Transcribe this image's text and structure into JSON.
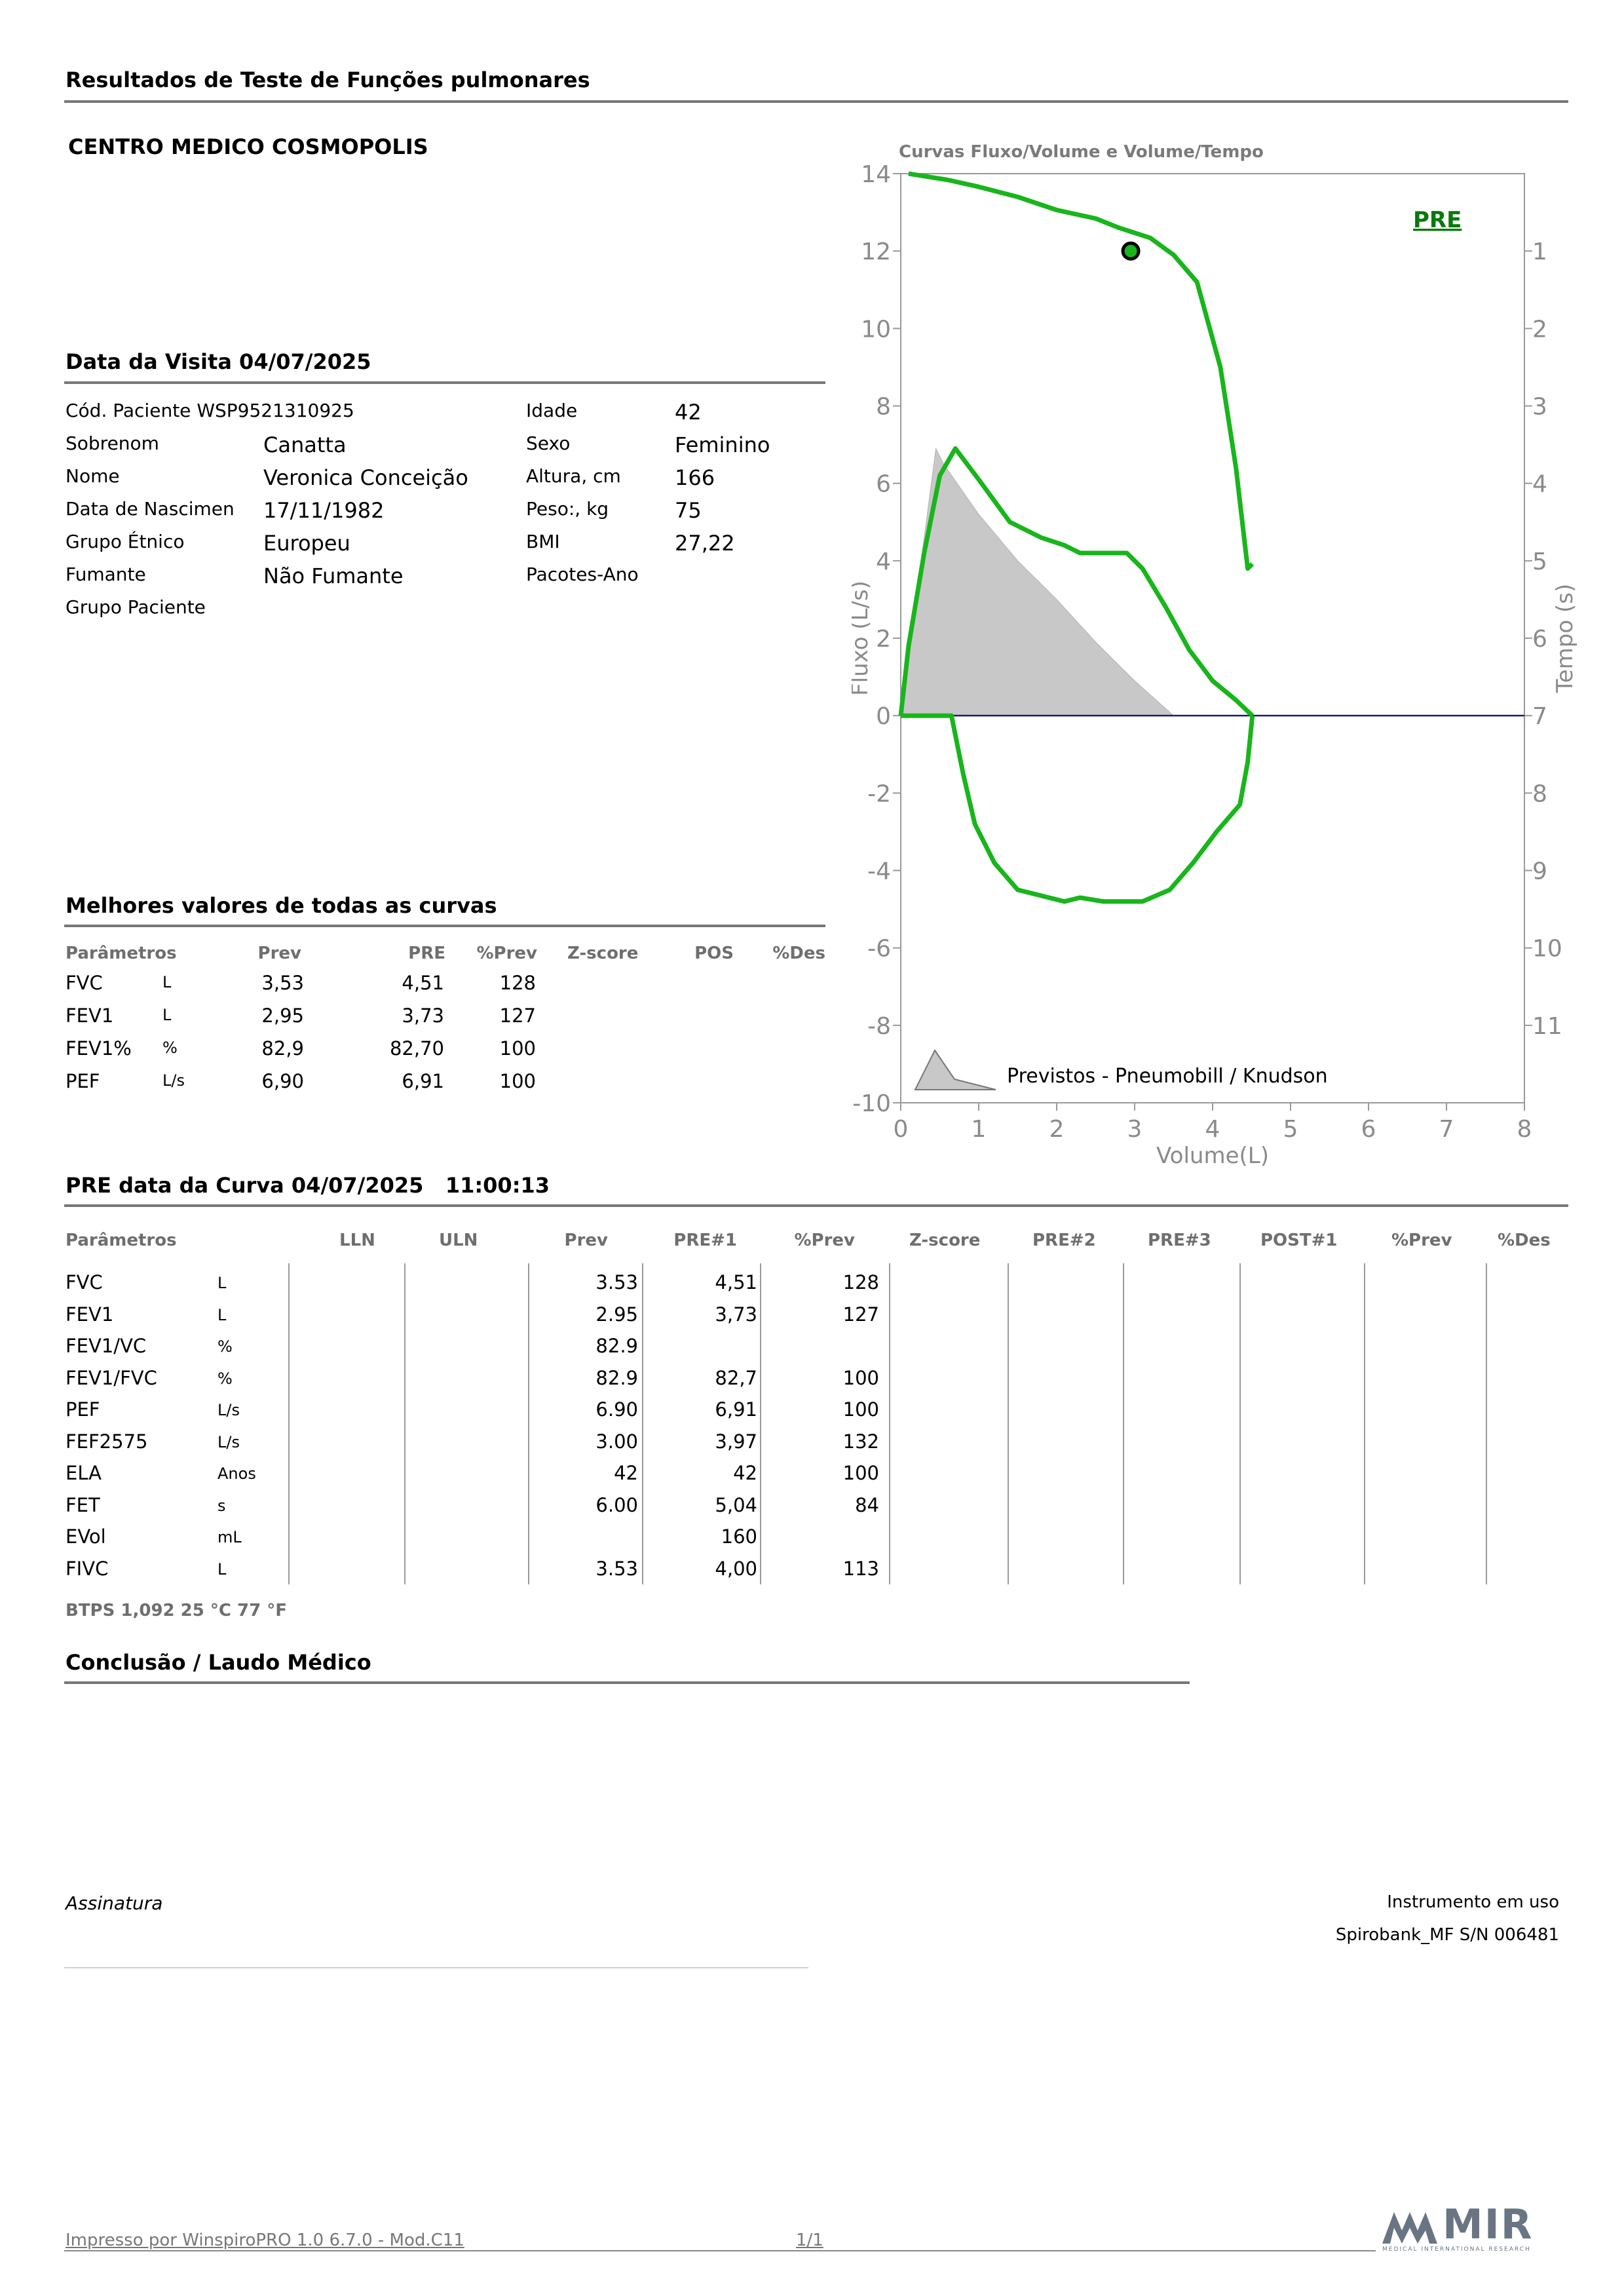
{
  "header": {
    "title": "Resultados de Teste de Funções pulmonares",
    "clinic": "CENTRO MEDICO COSMOPOLIS"
  },
  "visit": {
    "title": "Data da Visita 04/07/2025",
    "patient_code_label": "Cód. Paciente",
    "patient_code": "WSP9521310925",
    "surname_label": "Sobrenom",
    "surname": "Canatta",
    "name_label": "Nome",
    "name": "Veronica Conceição",
    "birth_label": "Data de Nascimen",
    "birth": "17/11/1982",
    "ethnic_label": "Grupo Étnico",
    "ethnic": "Europeu",
    "smoker_label": "Fumante",
    "smoker": "Não Fumante",
    "group_label": "Grupo Paciente",
    "age_label": "Idade",
    "age": "42",
    "sex_label": "Sexo",
    "sex": "Feminino",
    "height_label": "Altura, cm",
    "height": "166",
    "weight_label": "Peso:, kg",
    "weight": "75",
    "bmi_label": "BMI",
    "bmi": "27,22",
    "packs_label": "Pacotes-Ano"
  },
  "best": {
    "title": "Melhores valores de todas as curvas",
    "headers": [
      "Parâmetros",
      "Prev",
      "PRE",
      "%Prev",
      "Z-score",
      "POS",
      "%Des"
    ],
    "rows": [
      {
        "p": "FVC",
        "u": "L",
        "prev": "3,53",
        "pre": "4,51",
        "pct": "128"
      },
      {
        "p": "FEV1",
        "u": "L",
        "prev": "2,95",
        "pre": "3,73",
        "pct": "127"
      },
      {
        "p": "FEV1%",
        "u": "%",
        "prev": "82,9",
        "pre": "82,70",
        "pct": "100"
      },
      {
        "p": "PEF",
        "u": "L/s",
        "prev": "6,90",
        "pre": "6,91",
        "pct": "100"
      }
    ]
  },
  "curve": {
    "title": "PRE data da Curva 04/07/2025",
    "time": "11:00:13",
    "headers": [
      "Parâmetros",
      "LLN",
      "ULN",
      "Prev",
      "PRE#1",
      "%Prev",
      "Z-score",
      "PRE#2",
      "PRE#3",
      "POST#1",
      "%Prev",
      "%Des"
    ],
    "rows": [
      {
        "p": "FVC",
        "u": "L",
        "prev": "3.53",
        "pre1": "4,51",
        "pct": "128"
      },
      {
        "p": "FEV1",
        "u": "L",
        "prev": "2.95",
        "pre1": "3,73",
        "pct": "127"
      },
      {
        "p": "FEV1/VC",
        "u": "%",
        "prev": "82.9",
        "pre1": "",
        "pct": ""
      },
      {
        "p": "FEV1/FVC",
        "u": "%",
        "prev": "82.9",
        "pre1": "82,7",
        "pct": "100"
      },
      {
        "p": "PEF",
        "u": "L/s",
        "prev": "6.90",
        "pre1": "6,91",
        "pct": "100"
      },
      {
        "p": "FEF2575",
        "u": "L/s",
        "prev": "3.00",
        "pre1": "3,97",
        "pct": "132"
      },
      {
        "p": "ELA",
        "u": "Anos",
        "prev": "42",
        "pre1": "42",
        "pct": "100"
      },
      {
        "p": "FET",
        "u": "s",
        "prev": "6.00",
        "pre1": "5,04",
        "pct": "84"
      },
      {
        "p": "EVol",
        "u": "mL",
        "prev": "",
        "pre1": "160",
        "pct": ""
      },
      {
        "p": "FIVC",
        "u": "L",
        "prev": "3.53",
        "pre1": "4,00",
        "pct": "113"
      }
    ],
    "btps": "BTPS  1,092  25 °C  77 °F"
  },
  "conclusion": {
    "title": "Conclusão / Laudo Médico"
  },
  "signature": {
    "label": "Assinatura",
    "instrument_label": "Instrumento em uso",
    "instrument": "Spirobank_MF S/N 006481"
  },
  "footer": {
    "printed": "Impresso por WinspiroPRO 1.0 6.7.0 - Mod.C11",
    "page": "1/1",
    "logo": "MIR",
    "logo_sub": "MEDICAL INTERNATIONAL RESEARCH"
  },
  "chart_data": {
    "type": "line",
    "title": "Curvas Fluxo/Volume e Volume/Tempo",
    "xlabel": "Volume(L)",
    "ylabel": "Fluxo (L/s)",
    "y2label": "Tempo (s)",
    "xlim": [
      0,
      8
    ],
    "ylim": [
      -10,
      14
    ],
    "xticks": [
      0,
      1,
      2,
      3,
      4,
      5,
      6,
      7,
      8
    ],
    "yticks": [
      14,
      12,
      10,
      8,
      6,
      4,
      2,
      0,
      -2,
      -4,
      -6,
      -8,
      -10
    ],
    "y2ticks": [
      1,
      2,
      3,
      4,
      5,
      6,
      7,
      8,
      9,
      10,
      11
    ],
    "grid": false,
    "series_label": "PRE",
    "legend_label": "Previstos - Pneumobill / Knudson",
    "colors": {
      "measured": "#19b51c",
      "predicted": "#c8c8c8",
      "axis": "#1a1a7a"
    },
    "predicted": [
      [
        0,
        0
      ],
      [
        0.45,
        6.9
      ],
      [
        0.55,
        6.5
      ],
      [
        1.0,
        5.2
      ],
      [
        1.5,
        4.0
      ],
      [
        2.0,
        3.0
      ],
      [
        2.5,
        1.9
      ],
      [
        3.0,
        0.9
      ],
      [
        3.5,
        0
      ]
    ],
    "expiratory": [
      [
        0,
        0
      ],
      [
        0.1,
        1.8
      ],
      [
        0.3,
        4.2
      ],
      [
        0.5,
        6.2
      ],
      [
        0.7,
        6.9
      ],
      [
        1.0,
        6.1
      ],
      [
        1.4,
        5.0
      ],
      [
        1.8,
        4.6
      ],
      [
        2.1,
        4.4
      ],
      [
        2.3,
        4.2
      ],
      [
        2.9,
        4.2
      ],
      [
        3.1,
        3.8
      ],
      [
        3.4,
        2.8
      ],
      [
        3.7,
        1.7
      ],
      [
        4.0,
        0.9
      ],
      [
        4.3,
        0.4
      ],
      [
        4.51,
        0
      ]
    ],
    "inspiratory": [
      [
        0,
        0
      ],
      [
        0.65,
        0
      ],
      [
        0.8,
        -1.5
      ],
      [
        0.95,
        -2.8
      ],
      [
        1.2,
        -3.8
      ],
      [
        1.5,
        -4.5
      ],
      [
        1.9,
        -4.7
      ],
      [
        2.1,
        -4.8
      ],
      [
        2.3,
        -4.7
      ],
      [
        2.6,
        -4.8
      ],
      [
        3.1,
        -4.8
      ],
      [
        3.45,
        -4.5
      ],
      [
        3.75,
        -3.8
      ],
      [
        4.05,
        -3.0
      ],
      [
        4.35,
        -2.3
      ],
      [
        4.45,
        -1.2
      ],
      [
        4.51,
        0
      ]
    ],
    "volume_time": [
      [
        0.1,
        0
      ],
      [
        0.6,
        0.08
      ],
      [
        1.0,
        0.17
      ],
      [
        1.5,
        0.3
      ],
      [
        2.0,
        0.47
      ],
      [
        2.5,
        0.58
      ],
      [
        2.8,
        0.7
      ],
      [
        3.2,
        0.83
      ],
      [
        3.5,
        1.05
      ],
      [
        3.8,
        1.4
      ],
      [
        4.1,
        2.5
      ],
      [
        4.3,
        3.8
      ],
      [
        4.45,
        5.1
      ],
      [
        4.51,
        5.04
      ]
    ],
    "marker": [
      2.95,
      12
    ]
  }
}
